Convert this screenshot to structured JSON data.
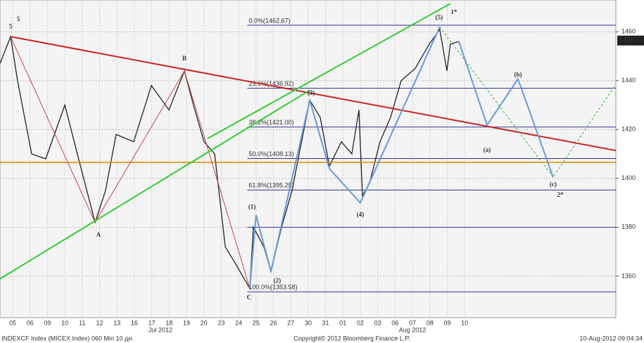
{
  "chart_data": {
    "type": "line",
    "xlim": [
      -0.73,
      34.7
    ],
    "ylim": [
      1343,
      1473
    ],
    "yticks": [
      1360,
      1380,
      1400,
      1420,
      1440,
      1460
    ],
    "xticks": [
      {
        "value": 0,
        "label": "05"
      },
      {
        "value": 1,
        "label": "06"
      },
      {
        "value": 2,
        "label": "09"
      },
      {
        "value": 3,
        "label": "10"
      },
      {
        "value": 4,
        "label": "11"
      },
      {
        "value": 5,
        "label": "12"
      },
      {
        "value": 6,
        "label": "13"
      },
      {
        "value": 7,
        "label": "16"
      },
      {
        "value": 8,
        "label": "17"
      },
      {
        "value": 9,
        "label": "18"
      },
      {
        "value": 10,
        "label": "19"
      },
      {
        "value": 11,
        "label": "20"
      },
      {
        "value": 12,
        "label": "23"
      },
      {
        "value": 13,
        "label": "24"
      },
      {
        "value": 14,
        "label": "25"
      },
      {
        "value": 15,
        "label": "26"
      },
      {
        "value": 16,
        "label": "27"
      },
      {
        "value": 17,
        "label": "30"
      },
      {
        "value": 18,
        "label": "31"
      },
      {
        "value": 19,
        "label": "01"
      },
      {
        "value": 20,
        "label": "02"
      },
      {
        "value": 21,
        "label": "03"
      },
      {
        "value": 22,
        "label": "06"
      },
      {
        "value": 23,
        "label": "07"
      },
      {
        "value": 24,
        "label": "08"
      },
      {
        "value": 25,
        "label": "09"
      },
      {
        "value": 26,
        "label": "10"
      }
    ],
    "month_labels": [
      {
        "value": 8.5,
        "label": "Jul 2012"
      },
      {
        "value": 23,
        "label": "Aug 2012"
      }
    ],
    "grid": true,
    "series": [
      {
        "role": "price",
        "color": "#222222",
        "width": 1.3,
        "x": [
          -0.73,
          -0.12,
          0.28,
          1.09,
          1.9,
          3.0,
          3.72,
          4.74,
          5.34,
          5.95,
          6.96,
          7.98,
          8.99,
          9.88,
          10.4,
          11.01,
          11.62,
          12.23,
          12.83,
          13.64,
          13.85,
          14.45,
          14.86,
          15.47,
          16.07,
          16.48,
          17.09,
          17.69,
          18.22,
          18.91,
          19.51,
          19.92,
          20.12,
          20.53,
          21.13,
          21.74,
          22.35,
          23.16,
          23.97,
          24.57,
          24.98,
          25.18,
          25.67
        ],
        "values": [
          1447,
          1458,
          1440,
          1410,
          1408,
          1430,
          1410,
          1382,
          1395,
          1418,
          1415,
          1438,
          1428,
          1444,
          1430,
          1415,
          1410,
          1372,
          1365,
          1355,
          1380,
          1372,
          1362,
          1380,
          1395,
          1410,
          1432,
          1425,
          1405,
          1415,
          1410,
          1428,
          1393,
          1398,
          1415,
          1425,
          1440,
          1445,
          1455,
          1461,
          1444,
          1455,
          1456
        ]
      },
      {
        "color": "#dd8800",
        "width": 1.5,
        "x": [
          -0.73,
          34.7
        ],
        "values": [
          1406.6,
          1406.6
        ]
      },
      {
        "color": "#cc2222",
        "width": 2,
        "x": [
          -0.12,
          34.7
        ],
        "values": [
          1458,
          1411.4
        ]
      },
      {
        "color": "#cc4444",
        "width": 1,
        "x": [
          -0.12,
          4.74,
          9.88,
          13.64
        ],
        "values": [
          1458,
          1382,
          1444,
          1355
        ]
      },
      {
        "color": "#33cc33",
        "width": 2,
        "x": [
          -0.73,
          17.09
        ],
        "values": [
          1358.9,
          1436.1
        ]
      },
      {
        "color": "#33cc33",
        "width": 2,
        "x": [
          11.21,
          25.18
        ],
        "values": [
          1416.3,
          1471.5
        ]
      },
      {
        "color": "#6699dd",
        "width": 2,
        "x": [
          13.64,
          14.0,
          14.86,
          17.09,
          18.22,
          20.0,
          24.57
        ],
        "values": [
          1355,
          1385,
          1362,
          1432,
          1404,
          1390,
          1462
        ]
      },
      {
        "color": "#6699dd",
        "width": 2,
        "x": [
          25.67,
          27.29,
          29.07,
          31.09
        ],
        "values": [
          1456,
          1421.8,
          1440.7,
          1400.5
        ]
      },
      {
        "color": "#33aa33",
        "width": 1,
        "dash": "3,3",
        "x": [
          24.57,
          31.09,
          34.7
        ],
        "values": [
          1462,
          1400.5,
          1438.5
        ]
      }
    ],
    "fib_levels": [
      {
        "value": 1462.67,
        "label": "0.0%(1462.67)"
      },
      {
        "value": 1436.92,
        "label": "23.6%(1436.92)"
      },
      {
        "value": 1421.0,
        "label": "38.2%(1421.00)"
      },
      {
        "value": 1408.13,
        "label": "50.0%(1408.13)"
      },
      {
        "value": 1395.25,
        "label": "61.8%(1395.25)"
      },
      {
        "value": 1353.58,
        "label": "100.0%(1353.58)"
      }
    ],
    "extra_level": 1380,
    "fib_start": 13.5,
    "wave_labels": [
      {
        "text": "5",
        "x": -0.12,
        "y": 1462.0,
        "color": "#6699dd",
        "size": 13
      },
      {
        "text": "5",
        "x": 0.33,
        "y": 1464.9,
        "color": "#33aa33",
        "size": 15
      },
      {
        "text": "A",
        "x": 4.94,
        "y": 1376.7,
        "color": "#cc2222",
        "size": 15
      },
      {
        "text": "B",
        "x": 9.88,
        "y": 1448.8,
        "color": "#cc2222",
        "size": 15
      },
      {
        "text": "C",
        "x": 13.6,
        "y": 1351.1,
        "color": "#cc2222",
        "size": 15
      },
      {
        "text": "(1)",
        "x": 13.77,
        "y": 1388.2,
        "color": "#6699dd",
        "size": 14
      },
      {
        "text": "(2)",
        "x": 15.22,
        "y": 1358.0,
        "color": "#6699dd",
        "size": 14
      },
      {
        "text": "(3)",
        "x": 17.17,
        "y": 1434.7,
        "color": "#6699dd",
        "size": 14
      },
      {
        "text": "(4)",
        "x": 20.0,
        "y": 1385,
        "color": "#6699dd",
        "size": 14
      },
      {
        "text": "(5)",
        "x": 24.53,
        "y": 1465.7,
        "color": "#6699dd",
        "size": 14
      },
      {
        "text": "1*",
        "x": 25.38,
        "y": 1467.8,
        "color": "#33aa33",
        "size": 16
      },
      {
        "text": "(a)",
        "x": 27.29,
        "y": 1411.4,
        "color": "#cc2222",
        "size": 12
      },
      {
        "text": "(b)",
        "x": 29.07,
        "y": 1442.2,
        "color": "#cc2222",
        "size": 12
      },
      {
        "text": "(c)",
        "x": 31.09,
        "y": 1397.4,
        "color": "#cc2222",
        "size": 12
      },
      {
        "text": "2*",
        "x": 31.5,
        "y": 1393,
        "color": "#33aa33",
        "size": 16
      }
    ],
    "last_price": 1456.41,
    "footer_left": "INDEXCF Index (MICEX Index) 060 Min 10 дн.",
    "footer_center": "Copyright© 2012 Bloomberg Finance L.P.",
    "footer_right": "10-Aug-2012 09:04:34"
  }
}
